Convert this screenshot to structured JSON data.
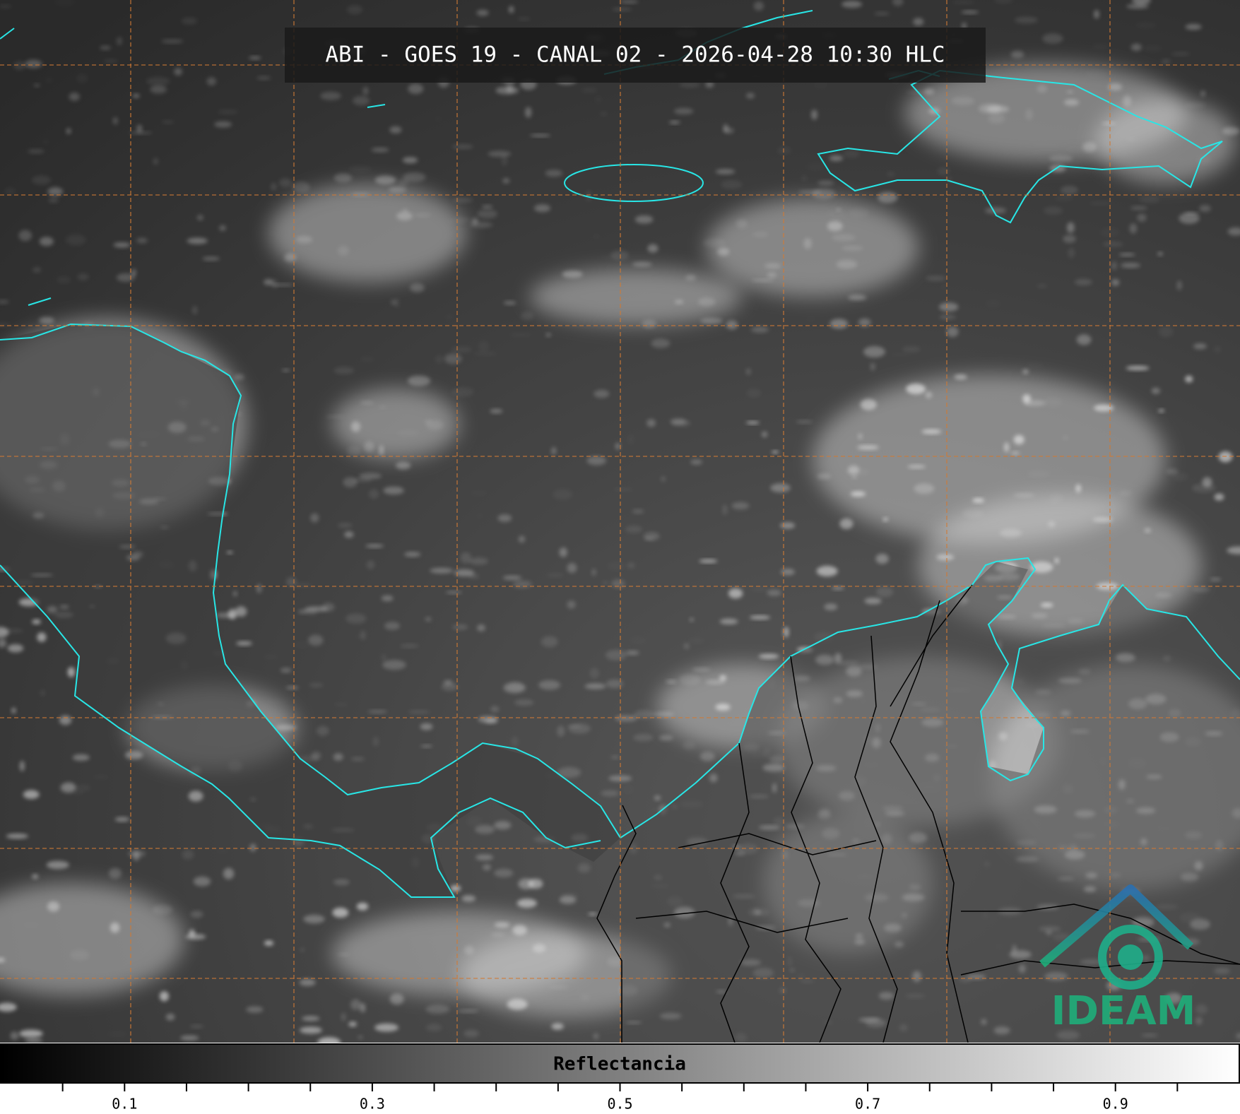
{
  "title": "ABI - GOES 19 - CANAL 02 - 2026-04-28 10:30 HLC",
  "colorbar": {
    "label": "Reflectancia",
    "xlim": [
      0,
      1
    ],
    "xticks": [
      0.1,
      0.3,
      0.5,
      0.7,
      0.9
    ],
    "minor_xticks": [
      0.05,
      0.15,
      0.2,
      0.25,
      0.35,
      0.4,
      0.45,
      0.55,
      0.6,
      0.65,
      0.75,
      0.8,
      0.85,
      0.95
    ],
    "colormap": [
      "#000000",
      "#ffffff"
    ]
  },
  "logo": {
    "text": "IDEAM"
  }
}
